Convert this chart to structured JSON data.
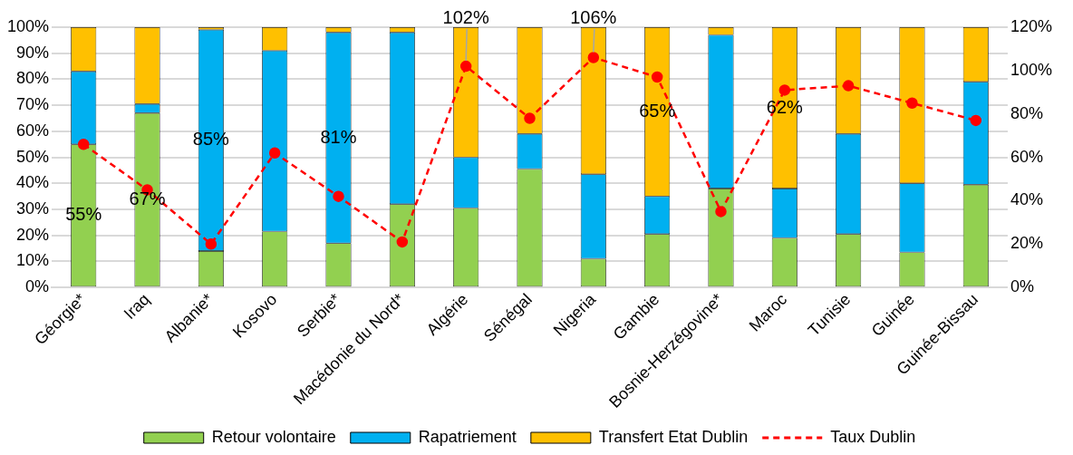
{
  "chart_data": {
    "type": "bar",
    "stacked": true,
    "grid": "y",
    "legend": "bottom",
    "marker": "circle",
    "categories": [
      "Géorgie*",
      "Iraq",
      "Albanie*",
      "Kosovo",
      "Serbie*",
      "Macédonie du Nord*",
      "Algérie",
      "Sénégal",
      "Nigeria",
      "Gambie",
      "Bosnie-Herzégovine*",
      "Maroc",
      "Tunisie",
      "Guinée",
      "Guinée-Bissau"
    ],
    "ylim": [
      0,
      100
    ],
    "yticks": [
      {
        "value": 0,
        "label": "0%"
      },
      {
        "value": 10,
        "label": "10%"
      },
      {
        "value": 20,
        "label": "20%"
      },
      {
        "value": 30,
        "label": "30%"
      },
      {
        "value": 40,
        "label": "40%"
      },
      {
        "value": 50,
        "label": "50%"
      },
      {
        "value": 60,
        "label": "60%"
      },
      {
        "value": 70,
        "label": "70%"
      },
      {
        "value": 80,
        "label": "80%"
      },
      {
        "value": 90,
        "label": "90%"
      },
      {
        "value": 100,
        "label": "100%"
      }
    ],
    "y2lim": [
      0,
      120
    ],
    "y2ticks": [
      {
        "value": 0,
        "label": "0%"
      },
      {
        "value": 20,
        "label": "20%"
      },
      {
        "value": 40,
        "label": "40%"
      },
      {
        "value": 60,
        "label": "60%"
      },
      {
        "value": 80,
        "label": "80%"
      },
      {
        "value": 100,
        "label": "100%"
      },
      {
        "value": 120,
        "label": "120%"
      }
    ],
    "series": [
      {
        "name": "Retour volontaire",
        "color": "#92d050",
        "values": [
          55,
          67,
          14,
          21.5,
          17,
          32,
          30.5,
          45.5,
          11,
          20.5,
          38,
          19,
          20.5,
          13.5,
          39.5
        ],
        "value_labels": [
          "55%",
          "67%",
          null,
          null,
          null,
          null,
          null,
          null,
          null,
          null,
          null,
          null,
          null,
          null,
          null
        ]
      },
      {
        "name": "Rapatriement",
        "color": "#00b0f0",
        "values": [
          28,
          3.5,
          85,
          69.5,
          81,
          66,
          19.5,
          13.5,
          32.5,
          14.5,
          59,
          19,
          38.5,
          26.5,
          39.5
        ],
        "value_labels": [
          null,
          null,
          "85%",
          null,
          "81%",
          null,
          null,
          null,
          null,
          null,
          null,
          null,
          null,
          null,
          null
        ]
      },
      {
        "name": "Transfert Etat Dublin",
        "color": "#ffc000",
        "values": [
          17,
          29.5,
          1,
          9,
          2,
          2,
          50,
          41,
          56.5,
          65,
          3,
          62,
          41,
          60,
          21
        ],
        "value_labels": [
          null,
          null,
          null,
          null,
          null,
          null,
          null,
          null,
          null,
          "65%",
          null,
          "62%",
          null,
          null,
          null
        ]
      },
      {
        "name": "Taux Dublin",
        "type": "line",
        "axis": "y2",
        "line_style": "dashed",
        "color": "#ff0000",
        "values": [
          66,
          45,
          20,
          62,
          42,
          21,
          102,
          78,
          106,
          97,
          35,
          91,
          93,
          85,
          77
        ],
        "value_labels": [
          null,
          null,
          null,
          null,
          null,
          null,
          "102%",
          null,
          "106%",
          null,
          null,
          null,
          null,
          null,
          null
        ]
      }
    ]
  }
}
